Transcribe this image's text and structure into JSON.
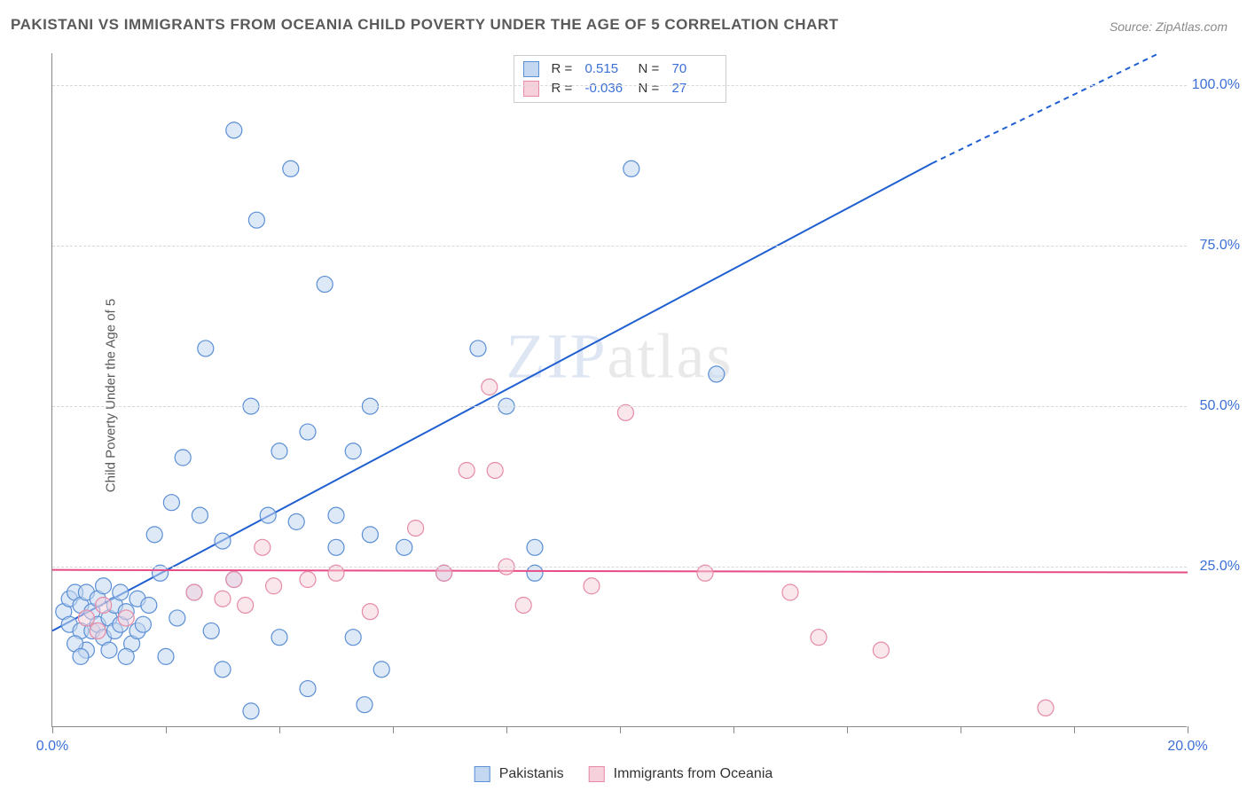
{
  "title": "PAKISTANI VS IMMIGRANTS FROM OCEANIA CHILD POVERTY UNDER THE AGE OF 5 CORRELATION CHART",
  "source": "Source: ZipAtlas.com",
  "yaxis_label": "Child Poverty Under the Age of 5",
  "watermark_pre": "ZIP",
  "watermark_post": "atlas",
  "chart": {
    "type": "scatter",
    "xlim": [
      0,
      20
    ],
    "ylim": [
      0,
      105
    ],
    "xticks": [
      0,
      2,
      4,
      6,
      8,
      10,
      12,
      14,
      16,
      18,
      20
    ],
    "xtick_labels_shown": {
      "0": "0.0%",
      "20": "20.0%"
    },
    "yticks": [
      25,
      50,
      75,
      100
    ],
    "ytick_labels": {
      "25": "25.0%",
      "50": "50.0%",
      "75": "75.0%",
      "100": "100.0%"
    },
    "background_color": "#ffffff",
    "grid_color": "#d8d8d8",
    "marker_radius": 9,
    "marker_stroke_width": 1.2,
    "trend_line_width": 2
  },
  "series": [
    {
      "key": "pakistanis",
      "label": "Pakistanis",
      "fill": "#c3d7f0",
      "stroke": "#5b8fd6",
      "fill_opacity": 0.55,
      "r_value": "0.515",
      "n_value": "70",
      "trend": {
        "color": "#1f5fd1",
        "y_intercept": 15,
        "slope": 4.7,
        "x_dash_after": 15.5
      },
      "points": [
        [
          0.2,
          18
        ],
        [
          0.3,
          16
        ],
        [
          0.3,
          20
        ],
        [
          0.4,
          21
        ],
        [
          0.5,
          15
        ],
        [
          0.5,
          19
        ],
        [
          0.6,
          12
        ],
        [
          0.6,
          21
        ],
        [
          0.7,
          18
        ],
        [
          0.7,
          15
        ],
        [
          0.8,
          16
        ],
        [
          0.8,
          20
        ],
        [
          0.9,
          14
        ],
        [
          0.9,
          22
        ],
        [
          1.0,
          17
        ],
        [
          1.0,
          12
        ],
        [
          1.1,
          19
        ],
        [
          1.1,
          15
        ],
        [
          1.2,
          21
        ],
        [
          1.2,
          16
        ],
        [
          1.3,
          18
        ],
        [
          1.4,
          13
        ],
        [
          1.5,
          20
        ],
        [
          1.5,
          15
        ],
        [
          1.6,
          16
        ],
        [
          1.7,
          19
        ],
        [
          1.8,
          30
        ],
        [
          2.0,
          11
        ],
        [
          2.1,
          35
        ],
        [
          2.3,
          42
        ],
        [
          2.6,
          33
        ],
        [
          2.7,
          59
        ],
        [
          2.8,
          15
        ],
        [
          3.0,
          29
        ],
        [
          3.0,
          9
        ],
        [
          3.2,
          93
        ],
        [
          3.2,
          23
        ],
        [
          3.5,
          50
        ],
        [
          3.6,
          79
        ],
        [
          3.8,
          33
        ],
        [
          4.0,
          43
        ],
        [
          4.0,
          14
        ],
        [
          4.2,
          87
        ],
        [
          4.3,
          32
        ],
        [
          4.5,
          46
        ],
        [
          4.5,
          6
        ],
        [
          4.8,
          69
        ],
        [
          5.0,
          33
        ],
        [
          5.0,
          28
        ],
        [
          5.3,
          14
        ],
        [
          5.3,
          43
        ],
        [
          5.5,
          3.5
        ],
        [
          5.6,
          30
        ],
        [
          5.6,
          50
        ],
        [
          5.8,
          9
        ],
        [
          6.2,
          28
        ],
        [
          6.9,
          24
        ],
        [
          7.5,
          59
        ],
        [
          8.0,
          50
        ],
        [
          8.5,
          24
        ],
        [
          8.5,
          28
        ],
        [
          10.2,
          87
        ],
        [
          11.7,
          55
        ],
        [
          3.5,
          2.5
        ],
        [
          1.9,
          24
        ],
        [
          2.2,
          17
        ],
        [
          2.5,
          21
        ],
        [
          0.4,
          13
        ],
        [
          0.5,
          11
        ],
        [
          1.3,
          11
        ]
      ]
    },
    {
      "key": "oceania",
      "label": "Immigrants from Oceania",
      "fill": "#f6d0da",
      "stroke": "#e68aa6",
      "fill_opacity": 0.5,
      "r_value": "-0.036",
      "n_value": "27",
      "trend": {
        "color": "#e84c86",
        "y_intercept": 24.5,
        "slope": -0.02,
        "x_dash_after": 100
      },
      "points": [
        [
          0.6,
          17
        ],
        [
          0.8,
          15
        ],
        [
          0.9,
          19
        ],
        [
          1.3,
          17
        ],
        [
          2.5,
          21
        ],
        [
          3.0,
          20
        ],
        [
          3.2,
          23
        ],
        [
          3.4,
          19
        ],
        [
          3.7,
          28
        ],
        [
          3.9,
          22
        ],
        [
          4.5,
          23
        ],
        [
          5.0,
          24
        ],
        [
          5.6,
          18
        ],
        [
          6.4,
          31
        ],
        [
          6.9,
          24
        ],
        [
          7.3,
          40
        ],
        [
          7.7,
          53
        ],
        [
          7.8,
          40
        ],
        [
          8.3,
          19
        ],
        [
          9.5,
          22
        ],
        [
          10.1,
          49
        ],
        [
          11.5,
          24
        ],
        [
          13.0,
          21
        ],
        [
          13.5,
          14
        ],
        [
          14.6,
          12
        ],
        [
          17.5,
          3
        ],
        [
          8.0,
          25
        ]
      ]
    }
  ],
  "legend_top": {
    "r_label": "R =",
    "n_label": "N ="
  },
  "legend_bottom": {}
}
